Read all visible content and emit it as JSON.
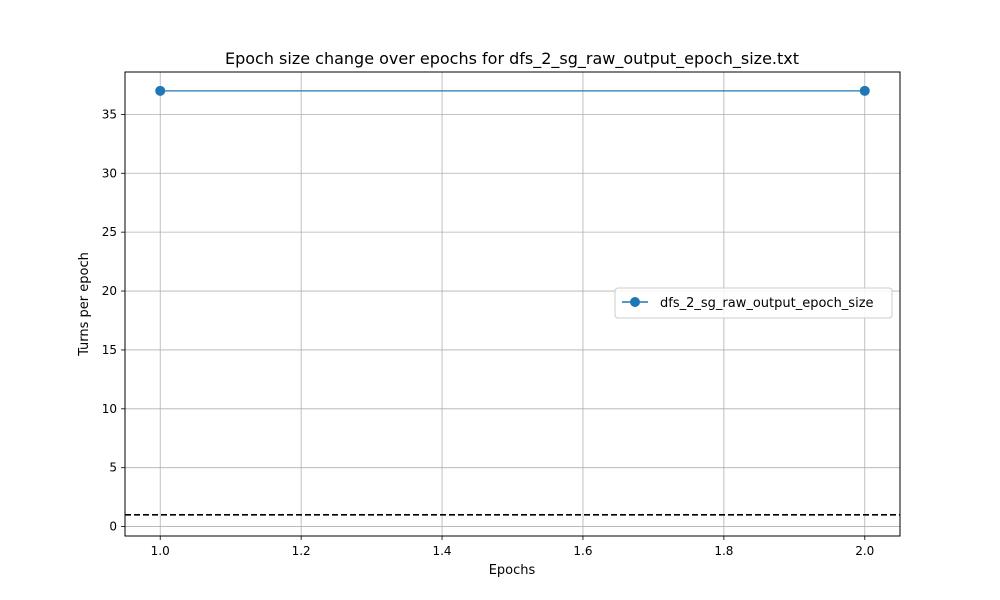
{
  "chart_data": {
    "type": "line",
    "title": "Epoch size change over epochs for dfs_2_sg_raw_output_epoch_size.txt",
    "xlabel": "Epochs",
    "ylabel": "Turns per epoch",
    "xlim": [
      0.95,
      2.05
    ],
    "ylim": [
      -0.8,
      38.6
    ],
    "x_ticks": [
      1.0,
      1.2,
      1.4,
      1.6,
      1.8,
      2.0
    ],
    "x_tick_labels": [
      "1.0",
      "1.2",
      "1.4",
      "1.6",
      "1.8",
      "2.0"
    ],
    "y_ticks": [
      0,
      5,
      10,
      15,
      20,
      25,
      30,
      35
    ],
    "y_tick_labels": [
      "0",
      "5",
      "10",
      "15",
      "20",
      "25",
      "30",
      "35"
    ],
    "grid": true,
    "legend_position": "center-right",
    "series": [
      {
        "name": "dfs_2_sg_raw_output_epoch_size",
        "color": "#1f77b4",
        "marker": "circle",
        "x": [
          1.0,
          2.0
        ],
        "y": [
          37,
          37
        ]
      }
    ],
    "reference_line": {
      "y": 1,
      "style": "dashed",
      "color": "#000000"
    }
  }
}
